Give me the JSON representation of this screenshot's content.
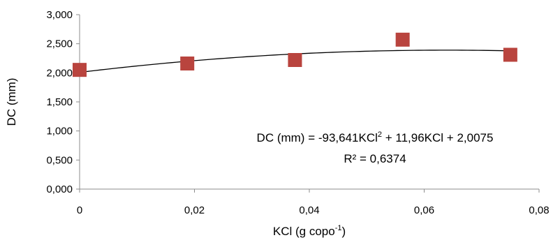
{
  "chart_data": {
    "type": "scatter",
    "xlabel_prefix": "KCl (g copo",
    "xlabel_sup": "-1",
    "xlabel_suffix": ")",
    "ylabel": "DC (mm)",
    "xlim": [
      0,
      0.08
    ],
    "ylim": [
      0,
      3.0
    ],
    "x_ticks": [
      "0",
      "0,02",
      "0,04",
      "0,06",
      "0,08"
    ],
    "y_ticks": [
      "0,000",
      "0,500",
      "1,000",
      "1,500",
      "2,000",
      "2,500",
      "3,000"
    ],
    "series": [
      {
        "x": [
          0,
          0.01875,
          0.0375,
          0.05625,
          0.075
        ],
        "y": [
          2.05,
          2.16,
          2.22,
          2.57,
          2.31
        ]
      }
    ],
    "trendline": {
      "type": "polynomial",
      "a": -93.641,
      "b": 11.96,
      "c": 2.0075
    },
    "equation_parts": [
      "DC (mm) = -93,641KCl",
      "2",
      " + 11,96KCl + 2,0075"
    ],
    "r2_text": "R² = 0,6374",
    "grid": false,
    "legend": "none",
    "marker_color": "#b9443e"
  }
}
